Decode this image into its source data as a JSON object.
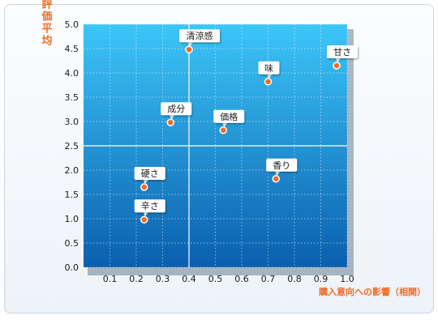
{
  "chart_data": {
    "type": "scatter",
    "ylabel": "評価平均",
    "xlabel": "購入意向への影響（相関）",
    "xlim": [
      0,
      1.0
    ],
    "ylim": [
      0,
      5.0
    ],
    "x_ticks": [
      "0.1",
      "0.2",
      "0.3",
      "0.4",
      "0.5",
      "0.6",
      "0.7",
      "0.8",
      "0.9",
      "1.0"
    ],
    "y_ticks": [
      "0.0",
      "0.5",
      "1.0",
      "1.5",
      "2.0",
      "2.5",
      "3.0",
      "3.5",
      "4.0",
      "4.5",
      "5.0"
    ],
    "reference_lines": {
      "x": 0.4,
      "y": 2.5
    },
    "points": [
      {
        "label": "清涼感",
        "x": 0.4,
        "y": 4.48
      },
      {
        "label": "甘さ",
        "x": 0.96,
        "y": 4.15
      },
      {
        "label": "味",
        "x": 0.7,
        "y": 3.82
      },
      {
        "label": "成分",
        "x": 0.33,
        "y": 2.98
      },
      {
        "label": "価格",
        "x": 0.53,
        "y": 2.82
      },
      {
        "label": "香り",
        "x": 0.73,
        "y": 1.82
      },
      {
        "label": "硬さ",
        "x": 0.23,
        "y": 1.65
      },
      {
        "label": "辛さ",
        "x": 0.23,
        "y": 0.98
      }
    ],
    "colors": {
      "plot_top": "#3cc6f8",
      "plot_bottom": "#0b5fae",
      "point": "#f26a21",
      "axis_title": "#f26a21"
    }
  }
}
